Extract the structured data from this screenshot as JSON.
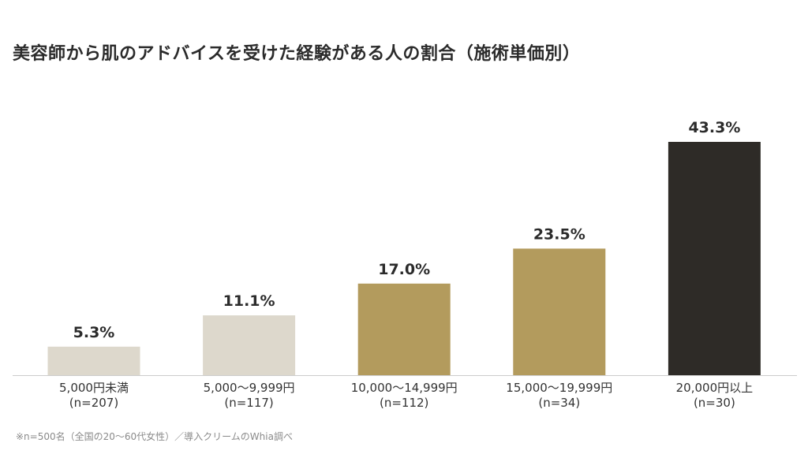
{
  "chart_data": {
    "type": "bar",
    "title": "美容師から肌のアドバイスを受けた経験がある人の割合（施術単価別）",
    "xlabel": "",
    "ylabel": "",
    "ylim": [
      0,
      50
    ],
    "grid": false,
    "legend": "none",
    "categories": [
      "5,000円未満",
      "5,000〜9,999円",
      "10,000〜14,999円",
      "15,000〜19,999円",
      "20,000円以上"
    ],
    "category_sublabels": [
      "(n=207)",
      "(n=117)",
      "(n=112)",
      "(n=34)",
      "(n=30)"
    ],
    "values": [
      5.3,
      11.1,
      17.0,
      23.5,
      43.3
    ],
    "value_labels": [
      "5.3%",
      "11.1%",
      "17.0%",
      "23.5%",
      "43.3%"
    ],
    "bar_colors": [
      "#ddd8cc",
      "#ddd8cc",
      "#b39b5d",
      "#b39b5d",
      "#2e2b27"
    ],
    "axis_color": "#cccccc",
    "footnote": "※n=500名（全国の20〜60代女性）／導入クリームのWhia調べ"
  }
}
